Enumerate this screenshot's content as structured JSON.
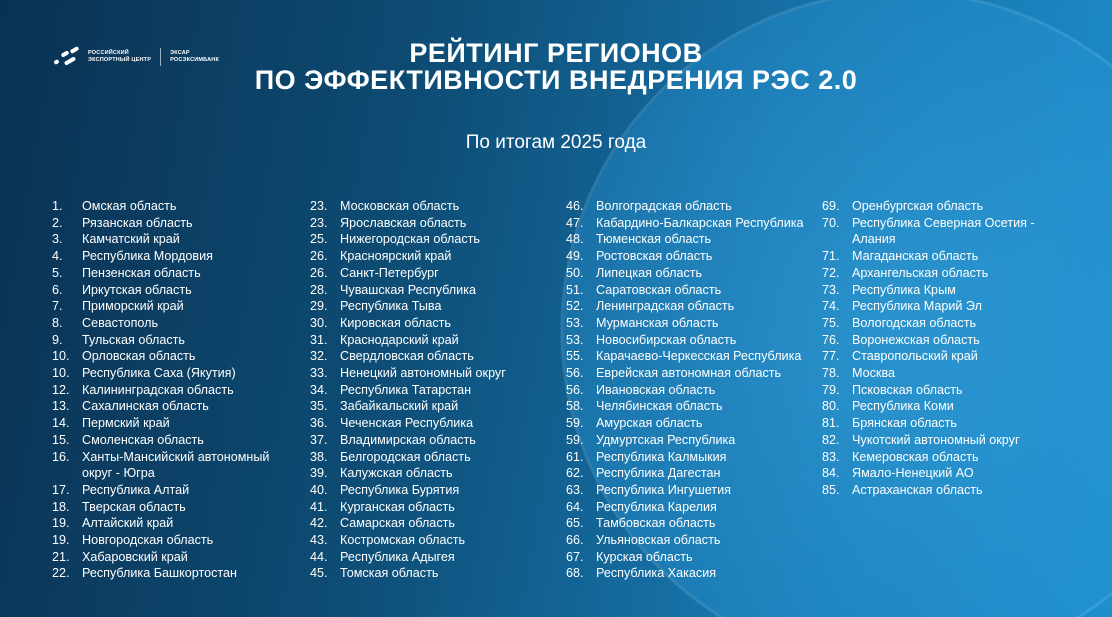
{
  "logo": {
    "org_line1": "РОССИЙСКИЙ",
    "org_line2": "ЭКСПОРТНЫЙ ЦЕНТР",
    "partner1": "ЭКСАР",
    "partner2": "РОСЭКСИМБАНК"
  },
  "header": {
    "title_line1": "РЕЙТИНГ РЕГИОНОВ",
    "title_line2": "ПО ЭФФЕКТИВНОСТИ ВНЕДРЕНИЯ РЭС 2.0",
    "subtitle": "По итогам 2025 года"
  },
  "colors": {
    "background_dark": "#0a3152",
    "background_light": "#1d8fcc",
    "text": "#ffffff"
  },
  "columns": [
    [
      {
        "rank": "1.",
        "name": "Омская область"
      },
      {
        "rank": "2.",
        "name": "Рязанская область"
      },
      {
        "rank": "3.",
        "name": "Камчатский край"
      },
      {
        "rank": "4.",
        "name": "Республика Мордовия"
      },
      {
        "rank": "5.",
        "name": "Пензенская область"
      },
      {
        "rank": "6.",
        "name": "Иркутская область"
      },
      {
        "rank": "7.",
        "name": "Приморский край"
      },
      {
        "rank": "8.",
        "name": "Севастополь"
      },
      {
        "rank": "9.",
        "name": "Тульская область"
      },
      {
        "rank": "10.",
        "name": "Орловская область"
      },
      {
        "rank": "10.",
        "name": "Республика Саха (Якутия)"
      },
      {
        "rank": "12.",
        "name": "Калининградская область"
      },
      {
        "rank": "13.",
        "name": "Сахалинская область"
      },
      {
        "rank": "14.",
        "name": "Пермский край"
      },
      {
        "rank": "15.",
        "name": "Смоленская область"
      },
      {
        "rank": "16.",
        "name": "Ханты-Мансийский автономный округ - Югра"
      },
      {
        "rank": "17.",
        "name": "Республика Алтай"
      },
      {
        "rank": "18.",
        "name": "Тверская область"
      },
      {
        "rank": "19.",
        "name": "Алтайский край"
      },
      {
        "rank": "19.",
        "name": "Новгородская область"
      },
      {
        "rank": "21.",
        "name": "Хабаровский край"
      },
      {
        "rank": "22.",
        "name": "Республика Башкортостан"
      }
    ],
    [
      {
        "rank": "23.",
        "name": "Московская область"
      },
      {
        "rank": "23.",
        "name": "Ярославская область"
      },
      {
        "rank": "25.",
        "name": "Нижегородская область"
      },
      {
        "rank": "26.",
        "name": "Красноярский край"
      },
      {
        "rank": "26.",
        "name": "Санкт-Петербург"
      },
      {
        "rank": "28.",
        "name": "Чувашская Республика"
      },
      {
        "rank": "29.",
        "name": "Республика Тыва"
      },
      {
        "rank": "30.",
        "name": "Кировская область"
      },
      {
        "rank": "31.",
        "name": "Краснодарский край"
      },
      {
        "rank": "32.",
        "name": "Свердловская область"
      },
      {
        "rank": "33.",
        "name": "Ненецкий автономный округ"
      },
      {
        "rank": "34.",
        "name": "Республика Татарстан"
      },
      {
        "rank": "35.",
        "name": "Забайкальский край"
      },
      {
        "rank": "36.",
        "name": "Чеченская Республика"
      },
      {
        "rank": "37.",
        "name": "Владимирская область"
      },
      {
        "rank": "38.",
        "name": "Белгородская область"
      },
      {
        "rank": "39.",
        "name": "Калужская область"
      },
      {
        "rank": "40.",
        "name": "Республика Бурятия"
      },
      {
        "rank": "41.",
        "name": "Курганская область"
      },
      {
        "rank": "42.",
        "name": "Самарская область"
      },
      {
        "rank": "43.",
        "name": "Костромская область"
      },
      {
        "rank": "44.",
        "name": "Республика Адыгея"
      },
      {
        "rank": "45.",
        "name": "Томская область"
      }
    ],
    [
      {
        "rank": "46.",
        "name": "Волгоградская область"
      },
      {
        "rank": "47.",
        "name": "Кабардино-Балкарская Республика"
      },
      {
        "rank": "48.",
        "name": "Тюменская область"
      },
      {
        "rank": "49.",
        "name": "Ростовская область"
      },
      {
        "rank": "50.",
        "name": "Липецкая область"
      },
      {
        "rank": "51.",
        "name": "Саратовская область"
      },
      {
        "rank": "52.",
        "name": "Ленинградская область"
      },
      {
        "rank": "53.",
        "name": "Мурманская область"
      },
      {
        "rank": "53.",
        "name": "Новосибирская область"
      },
      {
        "rank": "55.",
        "name": "Карачаево-Черкесская Республика"
      },
      {
        "rank": "56.",
        "name": "Еврейская автономная область"
      },
      {
        "rank": "56.",
        "name": "Ивановская область"
      },
      {
        "rank": "58.",
        "name": "Челябинская область"
      },
      {
        "rank": "59.",
        "name": "Амурская область"
      },
      {
        "rank": "59.",
        "name": "Удмуртская Республика"
      },
      {
        "rank": "61.",
        "name": "Республика Калмыкия"
      },
      {
        "rank": "62.",
        "name": "Республика Дагестан"
      },
      {
        "rank": "63.",
        "name": "Республика Ингушетия"
      },
      {
        "rank": "64.",
        "name": "Республика Карелия"
      },
      {
        "rank": "65.",
        "name": "Тамбовская область"
      },
      {
        "rank": "66.",
        "name": "Ульяновская область"
      },
      {
        "rank": "67.",
        "name": "Курская область"
      },
      {
        "rank": "68.",
        "name": "Республика Хакасия"
      }
    ],
    [
      {
        "rank": "69.",
        "name": "Оренбургская область"
      },
      {
        "rank": "70.",
        "name": "Республика Северная Осетия - Алания"
      },
      {
        "rank": "71.",
        "name": "Магаданская область"
      },
      {
        "rank": "72.",
        "name": "Архангельская область"
      },
      {
        "rank": "73.",
        "name": "Республика Крым"
      },
      {
        "rank": "74.",
        "name": "Республика Марий Эл"
      },
      {
        "rank": "75.",
        "name": "Вологодская область"
      },
      {
        "rank": "76.",
        "name": "Воронежская область"
      },
      {
        "rank": "77.",
        "name": "Ставропольский край"
      },
      {
        "rank": "78.",
        "name": "Москва"
      },
      {
        "rank": "79.",
        "name": "Псковская область"
      },
      {
        "rank": "80.",
        "name": "Республика Коми"
      },
      {
        "rank": "81.",
        "name": "Брянская область"
      },
      {
        "rank": "82.",
        "name": "Чукотский автономный округ"
      },
      {
        "rank": "83.",
        "name": "Кемеровская область"
      },
      {
        "rank": "84.",
        "name": "Ямало-Ненецкий АО"
      },
      {
        "rank": "85.",
        "name": "Астраханская область"
      }
    ]
  ]
}
